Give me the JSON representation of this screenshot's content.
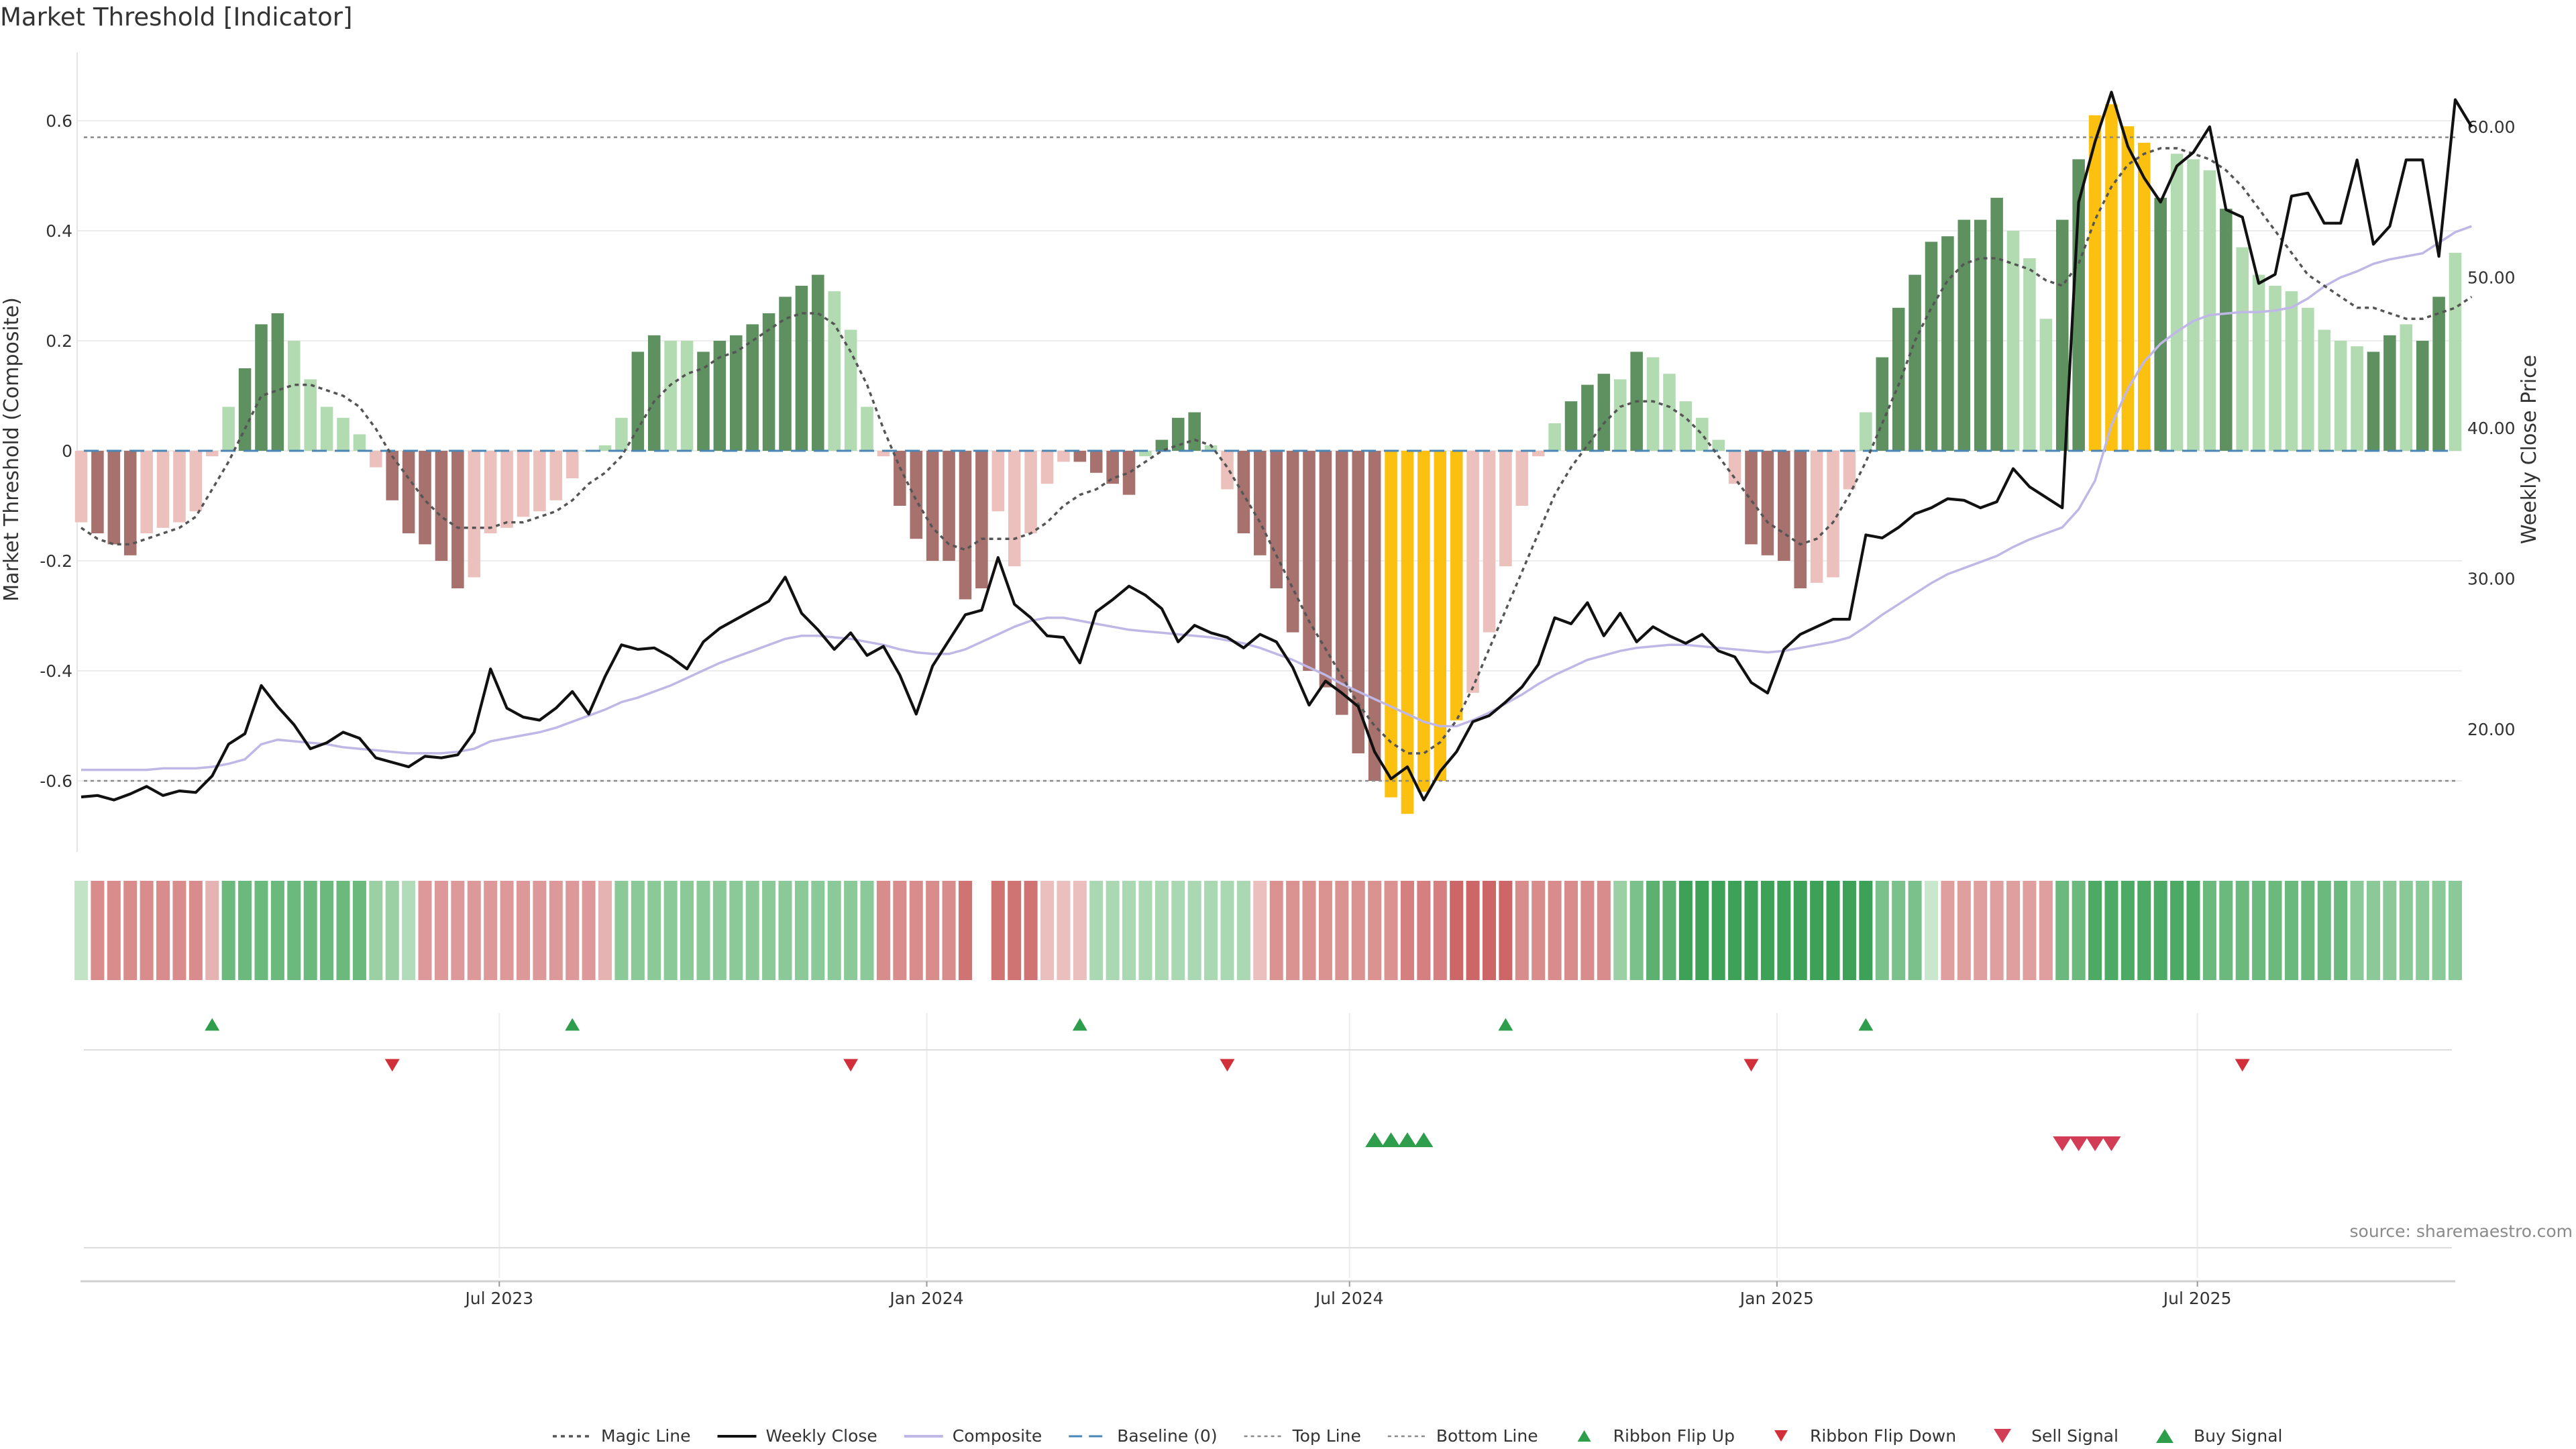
{
  "title": "Market Threshold [Indicator]",
  "source": "source: sharemaestro.com",
  "chart_data": {
    "type": "bar",
    "title": "Market Threshold [Indicator]",
    "ylabel": "Market Threshold (Composite)",
    "y2label": "Weekly Close Price",
    "ylim": [
      -0.73,
      0.73
    ],
    "y2lim": [
      12.0,
      65.0
    ],
    "yticks": [
      "0.6",
      "0.4",
      "0.2",
      "0",
      "-0.2",
      "-0.4",
      "-0.6"
    ],
    "ytick_values": [
      0.6,
      0.4,
      0.2,
      0,
      -0.2,
      -0.4,
      -0.6
    ],
    "y2ticks": [
      "60.00",
      "50.00",
      "40.00",
      "30.00",
      "20.00"
    ],
    "y2tick_values": [
      60,
      50,
      40,
      30,
      20
    ],
    "x_start": "2023-01-02",
    "x_end": "2025-10-20",
    "xticks": [
      "Jul 2023",
      "Jan 2024",
      "Jul 2024",
      "Jan 2025",
      "Jul 2025"
    ],
    "xtick_dates": [
      "2023-07-01",
      "2024-01-01",
      "2024-07-01",
      "2025-01-01",
      "2025-07-01"
    ],
    "top_line": 0.57,
    "bottom_line": -0.6,
    "grid": true,
    "legend_position": "bottom-center",
    "colors": {
      "strong_pos": "#5f9160",
      "weak_pos": "#b2dbb1",
      "strong_neg": "#a7716e",
      "weak_neg": "#ecc1bd",
      "extreme": "#fcc010",
      "close": "#111111",
      "composite": "#bfb8e6",
      "magic": "#555555",
      "baseline": "#4a86b5",
      "ribbon_up": "#2f9e4c",
      "ribbon_down": "#d1303a",
      "sell": "#d23c54",
      "buy": "#2f9e4c"
    },
    "composite_values": [
      -0.13,
      -0.15,
      -0.17,
      -0.19,
      -0.15,
      -0.14,
      -0.13,
      -0.11,
      -0.01,
      0.08,
      0.15,
      0.23,
      0.25,
      0.2,
      0.13,
      0.08,
      0.06,
      0.03,
      -0.03,
      -0.09,
      -0.15,
      -0.17,
      -0.2,
      -0.25,
      -0.23,
      -0.15,
      -0.14,
      -0.12,
      -0.11,
      -0.09,
      -0.05,
      0.0,
      0.01,
      0.06,
      0.18,
      0.21,
      0.2,
      0.2,
      0.18,
      0.2,
      0.21,
      0.23,
      0.25,
      0.28,
      0.3,
      0.32,
      0.29,
      0.22,
      0.08,
      -0.01,
      -0.1,
      -0.16,
      -0.2,
      -0.2,
      -0.27,
      -0.25,
      -0.11,
      -0.21,
      -0.15,
      -0.06,
      -0.02,
      -0.02,
      -0.04,
      -0.06,
      -0.08,
      -0.01,
      0.02,
      0.06,
      0.07,
      0.01,
      -0.07,
      -0.15,
      -0.19,
      -0.25,
      -0.33,
      -0.4,
      -0.43,
      -0.48,
      -0.55,
      -0.6,
      -0.63,
      -0.66,
      -0.62,
      -0.6,
      -0.49,
      -0.44,
      -0.33,
      -0.21,
      -0.1,
      -0.01,
      0.05,
      0.09,
      0.12,
      0.14,
      0.13,
      0.18,
      0.17,
      0.14,
      0.09,
      0.06,
      0.02,
      -0.06,
      -0.17,
      -0.19,
      -0.2,
      -0.25,
      -0.24,
      -0.23,
      -0.07,
      0.07,
      0.17,
      0.26,
      0.32,
      0.38,
      0.39,
      0.42,
      0.42,
      0.46,
      0.4,
      0.35,
      0.24,
      0.42,
      0.53,
      0.61,
      0.63,
      0.59,
      0.56,
      0.46,
      0.54,
      0.53,
      0.51,
      0.44,
      0.37,
      0.32,
      0.3,
      0.29,
      0.26,
      0.22,
      0.2,
      0.19,
      0.18,
      0.21,
      0.23,
      0.2,
      0.28,
      0.36
    ],
    "bar_classes": [
      "weak_neg",
      "strong_neg",
      "strong_neg",
      "strong_neg",
      "weak_neg",
      "weak_neg",
      "weak_neg",
      "weak_neg",
      "weak_neg",
      "weak_pos",
      "strong_pos",
      "strong_pos",
      "strong_pos",
      "weak_pos",
      "weak_pos",
      "weak_pos",
      "weak_pos",
      "weak_pos",
      "weak_neg",
      "strong_neg",
      "strong_neg",
      "strong_neg",
      "strong_neg",
      "strong_neg",
      "weak_neg",
      "weak_neg",
      "weak_neg",
      "weak_neg",
      "weak_neg",
      "weak_neg",
      "weak_neg",
      "weak_pos",
      "weak_pos",
      "weak_pos",
      "strong_pos",
      "strong_pos",
      "weak_pos",
      "weak_pos",
      "strong_pos",
      "strong_pos",
      "strong_pos",
      "strong_pos",
      "strong_pos",
      "strong_pos",
      "strong_pos",
      "strong_pos",
      "weak_pos",
      "weak_pos",
      "weak_pos",
      "weak_neg",
      "strong_neg",
      "strong_neg",
      "strong_neg",
      "strong_neg",
      "strong_neg",
      "strong_neg",
      "weak_neg",
      "weak_neg",
      "weak_neg",
      "weak_neg",
      "weak_neg",
      "strong_neg",
      "strong_neg",
      "strong_neg",
      "strong_neg",
      "weak_pos",
      "strong_pos",
      "strong_pos",
      "strong_pos",
      "weak_pos",
      "weak_neg",
      "strong_neg",
      "strong_neg",
      "strong_neg",
      "strong_neg",
      "strong_neg",
      "strong_neg",
      "strong_neg",
      "strong_neg",
      "strong_neg",
      "extreme",
      "extreme",
      "extreme",
      "extreme",
      "extreme",
      "weak_neg",
      "weak_neg",
      "weak_neg",
      "weak_neg",
      "weak_neg",
      "weak_pos",
      "strong_pos",
      "strong_pos",
      "strong_pos",
      "weak_pos",
      "strong_pos",
      "weak_pos",
      "weak_pos",
      "weak_pos",
      "weak_pos",
      "weak_pos",
      "weak_neg",
      "strong_neg",
      "strong_neg",
      "strong_neg",
      "strong_neg",
      "weak_neg",
      "weak_neg",
      "weak_neg",
      "weak_pos",
      "strong_pos",
      "strong_pos",
      "strong_pos",
      "strong_pos",
      "strong_pos",
      "strong_pos",
      "strong_pos",
      "strong_pos",
      "weak_pos",
      "weak_pos",
      "weak_pos",
      "strong_pos",
      "strong_pos",
      "extreme",
      "extreme",
      "extreme",
      "extreme",
      "strong_pos",
      "weak_pos",
      "weak_pos",
      "weak_pos",
      "strong_pos",
      "weak_pos",
      "weak_pos",
      "weak_pos",
      "weak_pos",
      "weak_pos",
      "weak_pos",
      "weak_pos",
      "weak_pos",
      "strong_pos",
      "strong_pos",
      "weak_pos",
      "strong_pos",
      "strong_pos"
    ],
    "close_values": [
      15.5,
      15.6,
      15.3,
      15.7,
      16.2,
      15.6,
      15.9,
      15.8,
      16.9,
      19.0,
      19.7,
      22.9,
      21.5,
      20.3,
      18.7,
      19.1,
      19.8,
      19.4,
      18.1,
      17.8,
      17.5,
      18.2,
      18.1,
      18.3,
      19.8,
      24.0,
      21.4,
      20.8,
      20.6,
      21.4,
      22.5,
      21.0,
      23.5,
      25.6,
      25.3,
      25.4,
      24.8,
      24.0,
      25.8,
      26.7,
      27.3,
      27.9,
      28.5,
      30.1,
      27.7,
      26.6,
      25.3,
      26.4,
      24.9,
      25.5,
      23.6,
      21.0,
      24.2,
      25.9,
      27.6,
      27.9,
      31.4,
      28.3,
      27.4,
      26.2,
      26.1,
      24.4,
      27.8,
      28.6,
      29.5,
      28.9,
      28.0,
      25.8,
      26.9,
      26.4,
      26.1,
      25.4,
      26.3,
      25.8,
      24.1,
      21.6,
      23.2,
      22.4,
      21.5,
      18.5,
      16.7,
      17.5,
      15.3,
      17.2,
      18.5,
      20.5,
      20.9,
      21.8,
      22.8,
      24.3,
      27.4,
      27.0,
      28.4,
      26.2,
      27.7,
      25.8,
      26.8,
      26.2,
      25.7,
      26.3,
      25.2,
      24.8,
      23.1,
      22.4,
      25.3,
      26.3,
      26.8,
      27.3,
      27.3,
      32.9,
      32.7,
      33.4,
      34.3,
      34.7,
      35.3,
      35.2,
      34.7,
      35.1,
      37.3,
      36.1,
      35.4,
      34.7,
      55.0,
      59.0,
      62.3,
      58.7,
      56.6,
      55.0,
      57.4,
      58.3,
      60.0,
      54.5,
      54.0,
      49.6,
      50.2,
      55.4,
      55.6,
      53.6,
      53.6,
      57.8,
      52.2,
      53.4,
      57.8,
      57.8,
      51.4,
      61.8,
      60.0
    ],
    "composite_line": [
      17.3,
      17.3,
      17.3,
      17.3,
      17.3,
      17.4,
      17.4,
      17.4,
      17.5,
      17.7,
      18.0,
      19.0,
      19.3,
      19.2,
      19.1,
      19.0,
      18.8,
      18.7,
      18.6,
      18.5,
      18.4,
      18.4,
      18.4,
      18.5,
      18.7,
      19.2,
      19.4,
      19.6,
      19.8,
      20.1,
      20.5,
      20.9,
      21.3,
      21.8,
      22.1,
      22.5,
      22.9,
      23.4,
      23.9,
      24.4,
      24.8,
      25.2,
      25.6,
      26.0,
      26.2,
      26.2,
      26.1,
      26.0,
      25.8,
      25.6,
      25.3,
      25.1,
      25.0,
      25.0,
      25.3,
      25.8,
      26.3,
      26.8,
      27.2,
      27.4,
      27.4,
      27.2,
      27.0,
      26.8,
      26.6,
      26.5,
      26.4,
      26.3,
      26.2,
      26.1,
      25.9,
      25.7,
      25.4,
      25.0,
      24.6,
      24.1,
      23.6,
      23.0,
      22.5,
      22.0,
      21.5,
      21.0,
      20.5,
      20.2,
      20.2,
      20.6,
      21.1,
      21.7,
      22.3,
      23.0,
      23.6,
      24.1,
      24.6,
      24.9,
      25.2,
      25.4,
      25.5,
      25.6,
      25.6,
      25.5,
      25.4,
      25.3,
      25.2,
      25.1,
      25.2,
      25.4,
      25.6,
      25.8,
      26.1,
      26.8,
      27.6,
      28.3,
      29.0,
      29.7,
      30.3,
      30.7,
      31.1,
      31.5,
      32.1,
      32.6,
      33.0,
      33.4,
      34.6,
      36.5,
      40.2,
      42.6,
      44.4,
      45.6,
      46.4,
      47.1,
      47.5,
      47.6,
      47.7,
      47.7,
      47.8,
      48.0,
      48.6,
      49.4,
      50.0,
      50.4,
      50.9,
      51.2,
      51.4,
      51.6,
      52.3,
      53.0,
      53.4
    ],
    "magic_values": [
      -0.14,
      -0.16,
      -0.17,
      -0.17,
      -0.16,
      -0.15,
      -0.14,
      -0.12,
      -0.07,
      -0.02,
      0.04,
      0.1,
      0.11,
      0.12,
      0.12,
      0.11,
      0.1,
      0.08,
      0.04,
      -0.01,
      -0.05,
      -0.09,
      -0.12,
      -0.14,
      -0.14,
      -0.14,
      -0.13,
      -0.13,
      -0.12,
      -0.11,
      -0.09,
      -0.06,
      -0.04,
      -0.01,
      0.04,
      0.09,
      0.12,
      0.14,
      0.15,
      0.17,
      0.18,
      0.2,
      0.22,
      0.24,
      0.25,
      0.25,
      0.23,
      0.18,
      0.12,
      0.04,
      -0.03,
      -0.09,
      -0.14,
      -0.17,
      -0.18,
      -0.16,
      -0.16,
      -0.16,
      -0.15,
      -0.13,
      -0.1,
      -0.08,
      -0.07,
      -0.05,
      -0.04,
      -0.02,
      0.0,
      0.01,
      0.02,
      0.01,
      -0.03,
      -0.08,
      -0.13,
      -0.19,
      -0.25,
      -0.31,
      -0.36,
      -0.41,
      -0.46,
      -0.5,
      -0.53,
      -0.55,
      -0.55,
      -0.53,
      -0.49,
      -0.43,
      -0.36,
      -0.29,
      -0.22,
      -0.15,
      -0.08,
      -0.03,
      0.01,
      0.05,
      0.08,
      0.09,
      0.09,
      0.08,
      0.06,
      0.03,
      -0.01,
      -0.05,
      -0.09,
      -0.13,
      -0.15,
      -0.17,
      -0.16,
      -0.13,
      -0.08,
      -0.02,
      0.05,
      0.12,
      0.2,
      0.26,
      0.31,
      0.34,
      0.35,
      0.35,
      0.34,
      0.33,
      0.31,
      0.3,
      0.34,
      0.42,
      0.48,
      0.52,
      0.54,
      0.55,
      0.55,
      0.54,
      0.53,
      0.51,
      0.48,
      0.44,
      0.4,
      0.36,
      0.32,
      0.3,
      0.28,
      0.26,
      0.26,
      0.25,
      0.24,
      0.24,
      0.25,
      0.26,
      0.28
    ],
    "ribbon_intensity": [
      0.15,
      -0.6,
      -0.6,
      -0.6,
      -0.6,
      -0.6,
      -0.6,
      -0.6,
      -0.3,
      0.7,
      0.7,
      0.7,
      0.7,
      0.7,
      0.7,
      0.7,
      0.7,
      0.7,
      0.4,
      0.4,
      0.25,
      -0.5,
      -0.5,
      -0.5,
      -0.5,
      -0.5,
      -0.5,
      -0.5,
      -0.5,
      -0.5,
      -0.5,
      -0.5,
      -0.3,
      0.5,
      0.5,
      0.5,
      0.5,
      0.5,
      0.5,
      0.5,
      0.5,
      0.5,
      0.5,
      0.5,
      0.5,
      0.5,
      0.5,
      0.5,
      0.5,
      -0.6,
      -0.6,
      -0.6,
      -0.6,
      -0.6,
      -0.8,
      -0.8,
      -0.8,
      -0.8,
      -0.8,
      -0.2,
      -0.2,
      -0.2,
      0.3,
      0.3,
      0.3,
      0.3,
      0.3,
      0.3,
      0.3,
      0.3,
      0.3,
      0.3,
      -0.2,
      -0.55,
      -0.55,
      -0.55,
      -0.55,
      -0.55,
      -0.55,
      -0.55,
      -0.55,
      -0.7,
      -0.7,
      -0.7,
      -0.9,
      -0.9,
      -0.9,
      -0.9,
      -0.6,
      -0.6,
      -0.6,
      -0.6,
      -0.6,
      -0.6,
      0.4,
      0.6,
      0.8,
      0.8,
      1.0,
      1.0,
      1.0,
      1.0,
      1.0,
      1.0,
      1.0,
      1.0,
      1.0,
      1.0,
      1.0,
      1.0,
      0.6,
      0.6,
      0.6,
      0.1,
      -0.45,
      -0.45,
      -0.45,
      -0.45,
      -0.45,
      -0.45,
      -0.45,
      0.7,
      0.7,
      0.9,
      0.9,
      0.9,
      0.9,
      0.9,
      0.9,
      0.9,
      0.7,
      0.7,
      0.7,
      0.7,
      0.7,
      0.7,
      0.7,
      0.7,
      0.7,
      0.5,
      0.5,
      0.5,
      0.5,
      0.5,
      0.5,
      0.5,
      0.5,
      -0.15,
      -0.5,
      -0.5,
      -0.5,
      -0.5,
      -0.5,
      -0.5,
      -0.5,
      -0.4,
      -0.4,
      -0.4
    ],
    "ribbon_gap_index": 55,
    "ribbon_flip_up": [
      8,
      30,
      61,
      87,
      109
    ],
    "ribbon_flip_down": [
      19,
      47,
      70,
      102,
      132
    ],
    "buy_signals": [
      79,
      80,
      81,
      82
    ],
    "sell_signals": [
      121,
      122,
      123,
      124
    ],
    "legend": [
      {
        "label": "Magic Line",
        "kind": "magic"
      },
      {
        "label": "Weekly Close",
        "kind": "close"
      },
      {
        "label": "Composite",
        "kind": "composite"
      },
      {
        "label": "Baseline (0)",
        "kind": "baseline"
      },
      {
        "label": "Top Line",
        "kind": "topline"
      },
      {
        "label": "Bottom Line",
        "kind": "bottomline"
      },
      {
        "label": "Ribbon Flip Up",
        "kind": "flipup"
      },
      {
        "label": "Ribbon Flip Down",
        "kind": "flipdown"
      },
      {
        "label": "Sell Signal",
        "kind": "sell"
      },
      {
        "label": "Buy Signal",
        "kind": "buy"
      }
    ]
  }
}
